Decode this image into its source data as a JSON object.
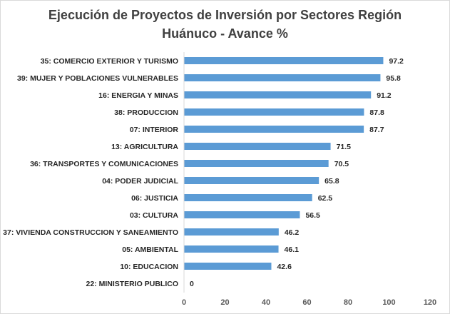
{
  "chart_data": {
    "type": "bar",
    "orientation": "horizontal",
    "title_line1": "Ejecución de Proyectos de Inversión por Sectores Región",
    "title_line2": "Huánuco - Avance %",
    "categories": [
      "35: COMERCIO EXTERIOR Y TURISMO",
      "39: MUJER Y POBLACIONES VULNERABLES",
      "16: ENERGIA Y MINAS",
      "38: PRODUCCION",
      "07: INTERIOR",
      "13: AGRICULTURA",
      "36: TRANSPORTES Y COMUNICACIONES",
      "04: PODER JUDICIAL",
      "06: JUSTICIA",
      "03: CULTURA",
      "37: VIVIENDA CONSTRUCCION Y SANEAMIENTO",
      "05: AMBIENTAL",
      "10: EDUCACION",
      "22: MINISTERIO PUBLICO"
    ],
    "values": [
      97.2,
      95.8,
      91.2,
      87.8,
      87.7,
      71.5,
      70.5,
      65.8,
      62.5,
      56.5,
      46.2,
      46.1,
      42.6,
      0
    ],
    "value_labels": [
      "97.2",
      "95.8",
      "91.2",
      "87.8",
      "87.7",
      "71.5",
      "70.5",
      "65.8",
      "62.5",
      "56.5",
      "46.2",
      "46.1",
      "42.6",
      "0"
    ],
    "xlim": [
      0,
      120
    ],
    "xticks": [
      "0",
      "20",
      "40",
      "60",
      "80",
      "100",
      "120"
    ],
    "grid": false,
    "legend": "none",
    "bar_color": "#5b9bd5"
  }
}
